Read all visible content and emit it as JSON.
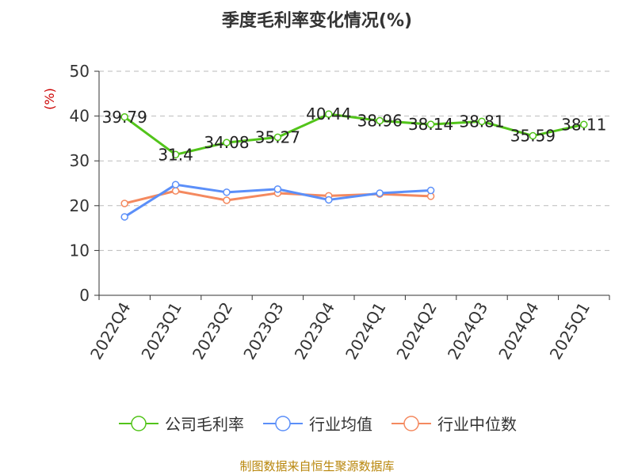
{
  "chart_data": {
    "type": "line",
    "title": "季度毛利率变化情况(%)",
    "ylabel": "(%)",
    "xlabel": "",
    "ylim": [
      0,
      50
    ],
    "yticks": [
      0,
      10,
      20,
      30,
      40,
      50
    ],
    "grid": true,
    "legend_position": "bottom",
    "categories": [
      "2022Q4",
      "2023Q1",
      "2023Q2",
      "2023Q3",
      "2023Q4",
      "2024Q1",
      "2024Q2",
      "2024Q3",
      "2024Q4",
      "2025Q1"
    ],
    "series": [
      {
        "name": "公司毛利率",
        "color": "#52c41a",
        "show_labels": true,
        "values": [
          39.79,
          31.4,
          34.08,
          35.27,
          40.44,
          38.96,
          38.14,
          38.81,
          35.59,
          38.11
        ]
      },
      {
        "name": "行业均值",
        "color": "#5b8ff9",
        "show_labels": false,
        "values": [
          17.5,
          24.7,
          23.0,
          23.7,
          21.3,
          22.8,
          23.4,
          null,
          null,
          null
        ]
      },
      {
        "name": "行业中位数",
        "color": "#f4895f",
        "show_labels": false,
        "values": [
          20.5,
          23.3,
          21.2,
          22.8,
          22.2,
          22.6,
          22.1,
          null,
          null,
          null
        ]
      }
    ]
  },
  "footer": {
    "source": "制图数据来自恒生聚源数据库"
  }
}
